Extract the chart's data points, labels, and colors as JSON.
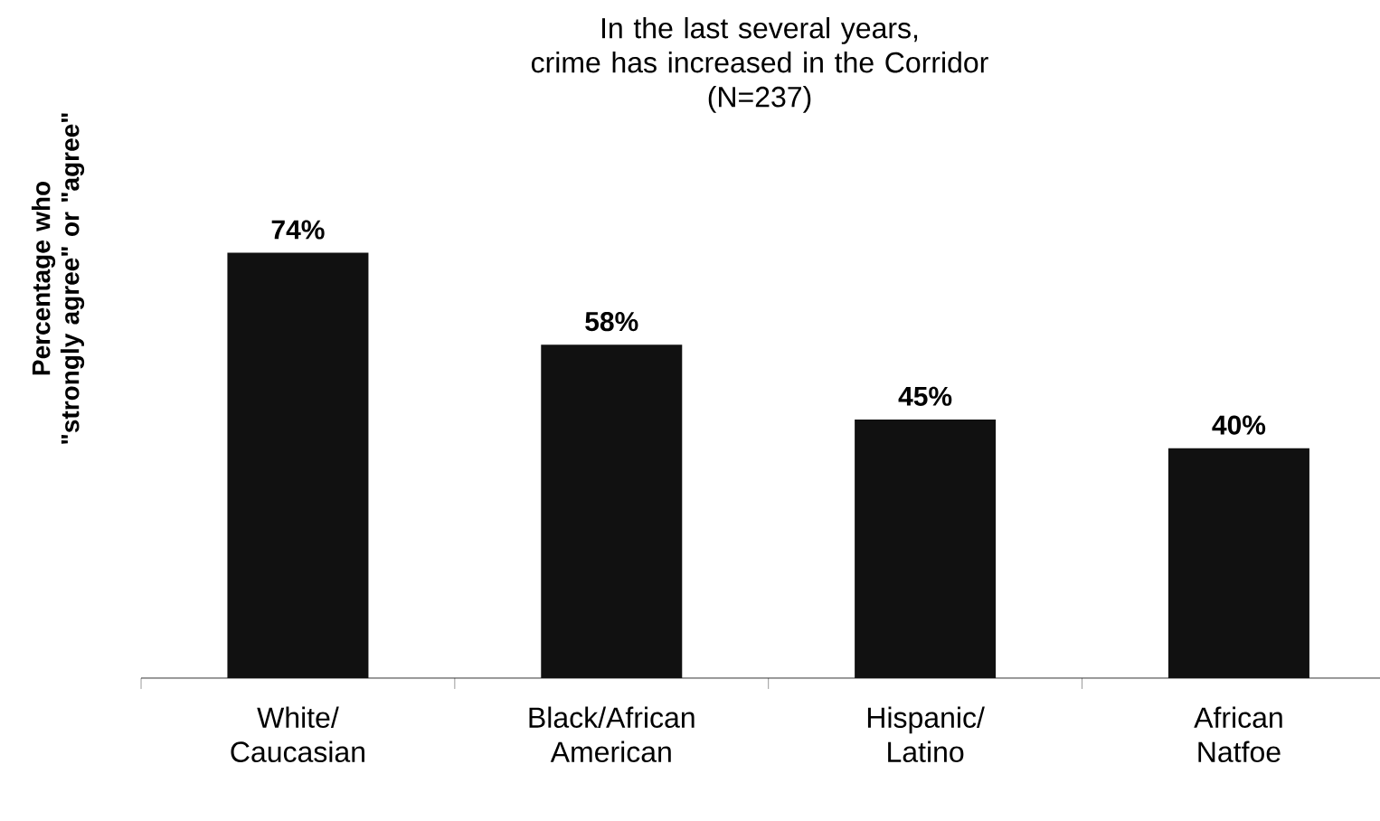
{
  "chart_data": {
    "type": "bar",
    "title": "In the last several years,\ncrime has increased in the Corridor",
    "subtitle": "(N=237)",
    "ylabel": "Percentage who\n\"strongly agree\" or \"agree\"",
    "categories": [
      "White/\nCaucasian",
      "Black/African\nAmerican",
      "Hispanic/\nLatino",
      "African\nNatfoe"
    ],
    "values": [
      74,
      58,
      45,
      40
    ],
    "color": "#111111",
    "value_labels": [
      "74%",
      "58%",
      "45%",
      "40%"
    ]
  }
}
